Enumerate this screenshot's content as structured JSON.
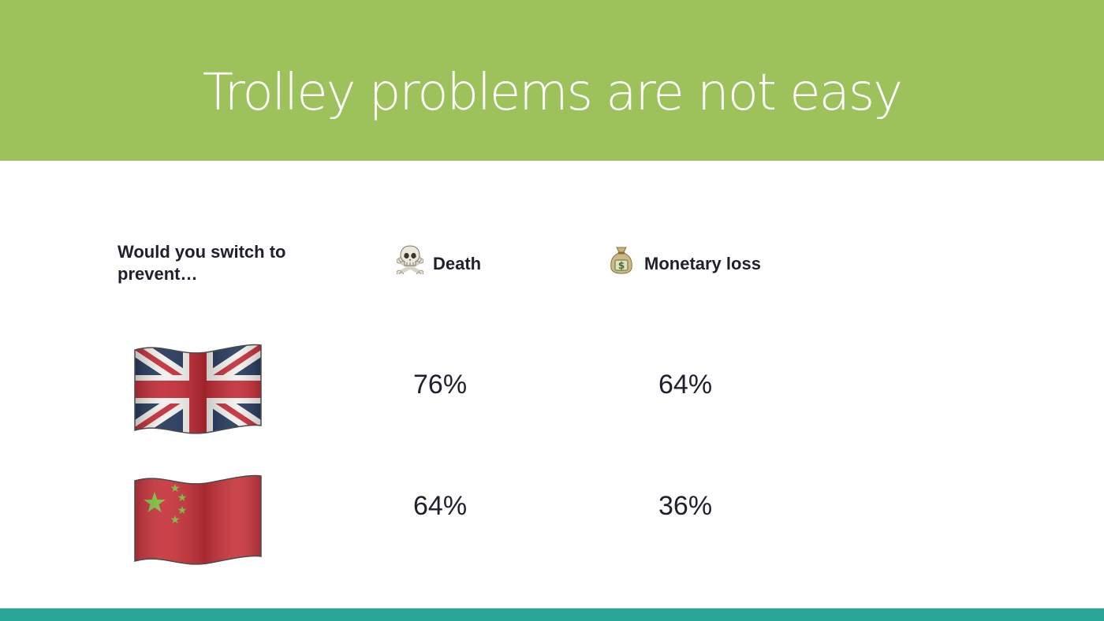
{
  "title": "Trolley problems are not easy",
  "question": "Would you switch to prevent…",
  "columns": {
    "death": {
      "label": "Death",
      "icon": "skull-crossbones-icon"
    },
    "money": {
      "label": "Monetary loss",
      "icon": "money-bag-icon"
    }
  },
  "rows": [
    {
      "flag": "united-kingdom-flag-icon",
      "death": "76%",
      "money": "64%"
    },
    {
      "flag": "china-flag-icon",
      "death": "64%",
      "money": "36%"
    }
  ],
  "colors": {
    "header": "#9dc15b",
    "footer": "#2aa697",
    "text": "#1f1f2e"
  }
}
